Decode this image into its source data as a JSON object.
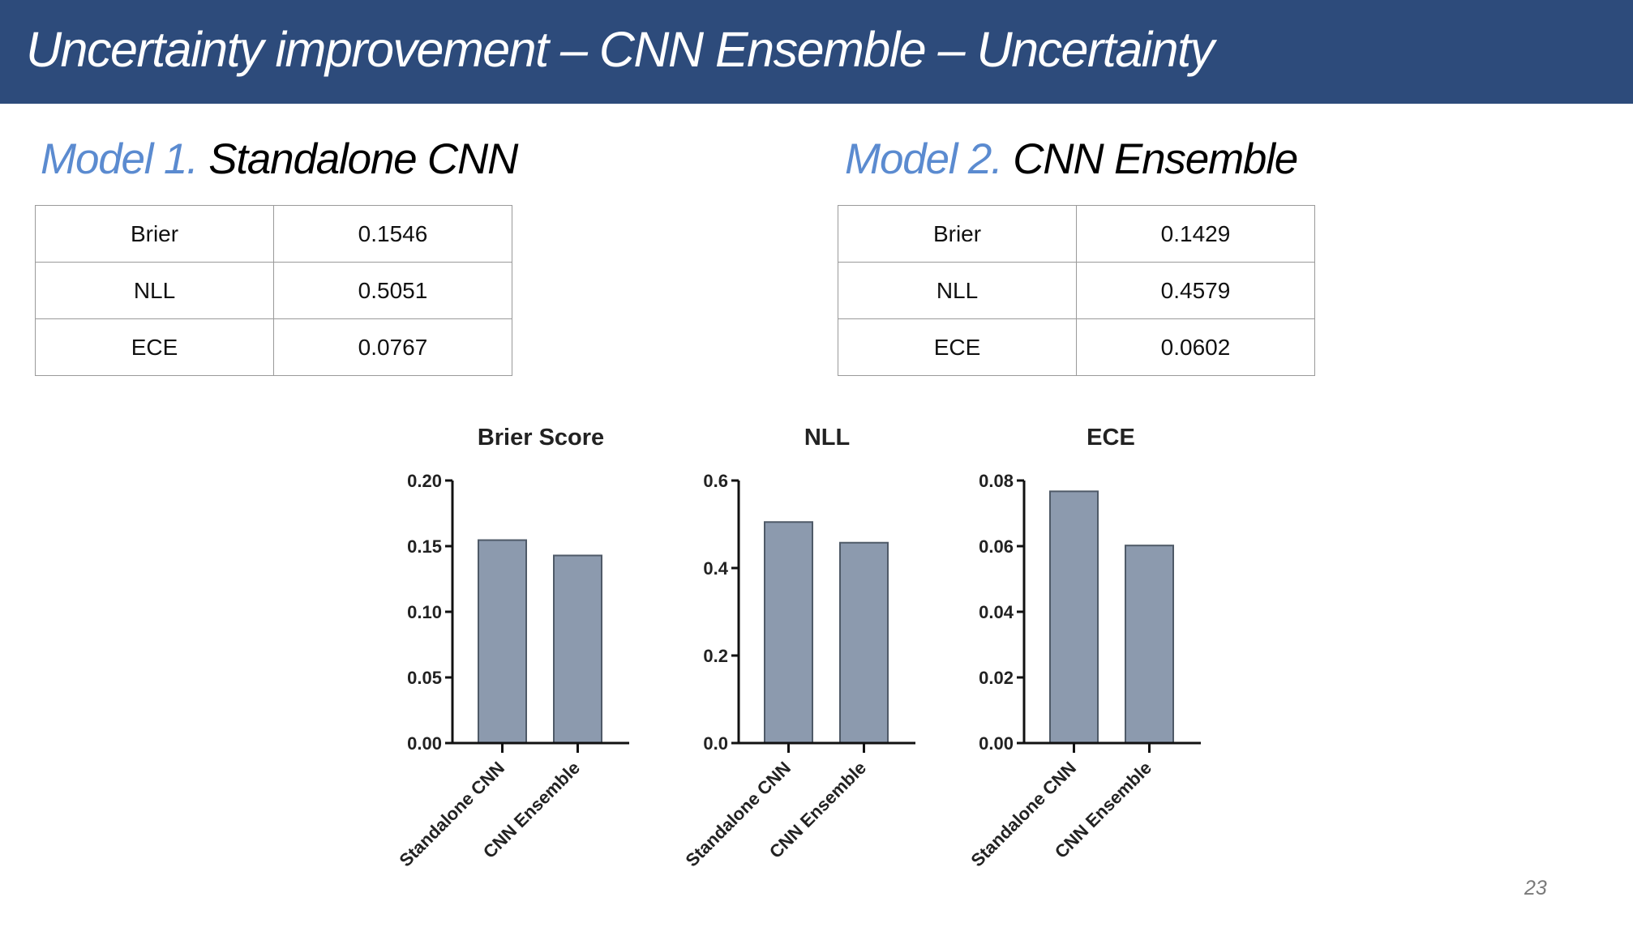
{
  "slide": {
    "title": "Uncertainty improvement – CNN Ensemble – Uncertainty",
    "page_number": "23",
    "colors": {
      "header_bg": "#2d4b7b",
      "accent": "#5b8bd0",
      "bar_fill": "#8c9aae",
      "bar_stroke": "#4f5a68"
    }
  },
  "model1": {
    "prefix": "Model 1.",
    "name": "Standalone CNN",
    "rows": [
      {
        "metric": "Brier",
        "value": "0.1546"
      },
      {
        "metric": "NLL",
        "value": "0.5051"
      },
      {
        "metric": "ECE",
        "value": "0.0767"
      }
    ]
  },
  "model2": {
    "prefix": "Model 2.",
    "name": "CNN Ensemble",
    "rows": [
      {
        "metric": "Brier",
        "value": "0.1429"
      },
      {
        "metric": "NLL",
        "value": "0.4579"
      },
      {
        "metric": "ECE",
        "value": "0.0602"
      }
    ]
  },
  "chart_data": [
    {
      "type": "bar",
      "title": "Brier Score",
      "categories": [
        "Standalone CNN",
        "CNN Ensemble"
      ],
      "values": [
        0.1546,
        0.1429
      ],
      "ylim": [
        0,
        0.2
      ],
      "yticks": [
        "0.00",
        "0.05",
        "0.10",
        "0.15",
        "0.20"
      ],
      "xlabel": "",
      "ylabel": "",
      "grid": false
    },
    {
      "type": "bar",
      "title": "NLL",
      "categories": [
        "Standalone CNN",
        "CNN Ensemble"
      ],
      "values": [
        0.5051,
        0.4579
      ],
      "ylim": [
        0,
        0.6
      ],
      "yticks": [
        "0.0",
        "0.2",
        "0.4",
        "0.6"
      ],
      "xlabel": "",
      "ylabel": "",
      "grid": false
    },
    {
      "type": "bar",
      "title": "ECE",
      "categories": [
        "Standalone CNN",
        "CNN Ensemble"
      ],
      "values": [
        0.0767,
        0.0602
      ],
      "ylim": [
        0,
        0.08
      ],
      "yticks": [
        "0.00",
        "0.02",
        "0.04",
        "0.06",
        "0.08"
      ],
      "xlabel": "",
      "ylabel": "",
      "grid": false
    }
  ]
}
